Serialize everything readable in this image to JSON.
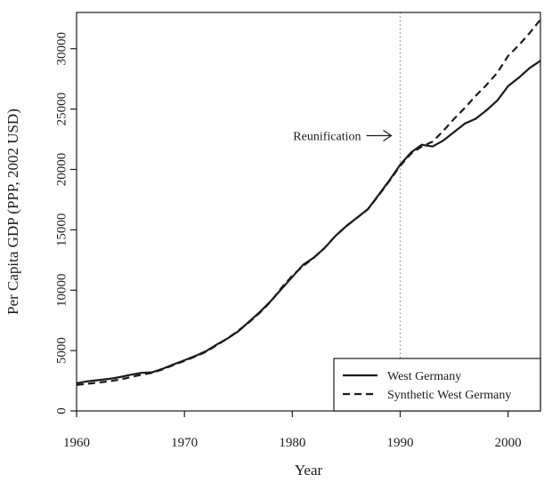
{
  "chart_data": {
    "type": "line",
    "title": "",
    "xlabel": "Year",
    "ylabel": "Per Capita GDP (PPP, 2002 USD)",
    "xlim": [
      1960,
      2003
    ],
    "ylim": [
      0,
      33000
    ],
    "x_ticks": [
      1960,
      1970,
      1980,
      1990,
      2000
    ],
    "y_ticks": [
      0,
      5000,
      10000,
      15000,
      20000,
      25000,
      30000
    ],
    "grid": false,
    "legend": "bottom-right",
    "colors": {
      "line": "#1a1a1a",
      "vline": "#8a8a8a"
    },
    "vline": {
      "x": 1990,
      "style": "dotted"
    },
    "annotation": {
      "text": "Reunification",
      "x": 1990,
      "y": 22800,
      "arrow": "right"
    },
    "x": [
      1960,
      1961,
      1962,
      1963,
      1964,
      1965,
      1966,
      1967,
      1968,
      1969,
      1970,
      1971,
      1972,
      1973,
      1974,
      1975,
      1976,
      1977,
      1978,
      1979,
      1980,
      1981,
      1982,
      1983,
      1984,
      1985,
      1986,
      1987,
      1988,
      1989,
      1990,
      1991,
      1992,
      1993,
      1994,
      1995,
      1996,
      1997,
      1998,
      1999,
      2000,
      2001,
      2002,
      2003
    ],
    "series": [
      {
        "name": "West Germany",
        "style": "solid",
        "values": [
          2300,
          2450,
          2550,
          2650,
          2800,
          3000,
          3150,
          3200,
          3500,
          3850,
          4200,
          4550,
          4950,
          5500,
          6000,
          6600,
          7400,
          8200,
          9100,
          10100,
          11100,
          12100,
          12700,
          13500,
          14500,
          15300,
          16000,
          16700,
          17900,
          19100,
          20400,
          21400,
          22050,
          21900,
          22400,
          23100,
          23800,
          24200,
          24900,
          25700,
          26900,
          27600,
          28400,
          29000
        ]
      },
      {
        "name": "Synthetic West Germany",
        "style": "dashed",
        "values": [
          2150,
          2250,
          2350,
          2450,
          2600,
          2800,
          3000,
          3150,
          3450,
          3800,
          4150,
          4500,
          4900,
          5450,
          6000,
          6650,
          7350,
          8150,
          9050,
          10200,
          11200,
          12000,
          12700,
          13500,
          14500,
          15300,
          16000,
          16700,
          17850,
          19050,
          20300,
          21300,
          21900,
          22300,
          23200,
          24200,
          25100,
          26100,
          27000,
          28000,
          29400,
          30300,
          31300,
          32400
        ]
      }
    ]
  }
}
